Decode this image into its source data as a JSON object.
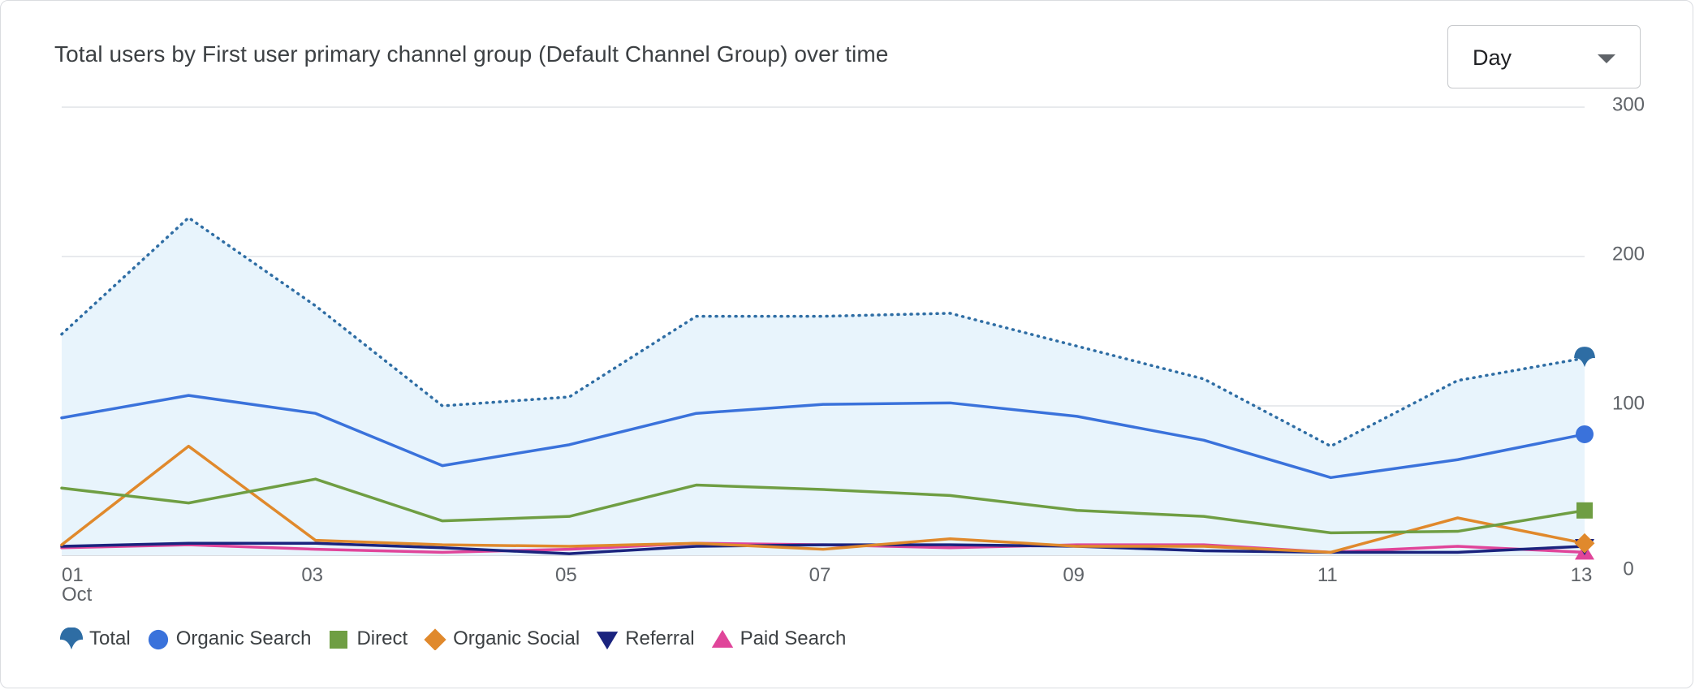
{
  "header": {
    "title": "Total users by First user primary channel group (Default Channel Group) over time",
    "granularity": "Day"
  },
  "chart_data": {
    "type": "line",
    "title": "Total users by First user primary channel group (Default Channel Group) over time",
    "x": [
      1,
      2,
      3,
      4,
      5,
      6,
      7,
      8,
      9,
      10,
      11,
      12,
      13
    ],
    "x_tick_labels": [
      "01",
      "03",
      "05",
      "07",
      "09",
      "11",
      "13"
    ],
    "x_tick_values": [
      1,
      3,
      5,
      7,
      9,
      11,
      13
    ],
    "x_sub_label": "Oct",
    "y_tick_labels": [
      "300",
      "200",
      "100",
      "0"
    ],
    "y_tick_values": [
      300,
      200,
      100,
      0
    ],
    "ylim": [
      0,
      300
    ],
    "y_axis_side": "right",
    "grid": true,
    "legend_position": "bottom-left",
    "series": [
      {
        "name": "Total",
        "key": "total",
        "color": "#2e6da4",
        "style": "dotted",
        "area": true,
        "area_color": "#e8f4fc",
        "marker": "drop",
        "values": [
          148,
          226,
          167,
          100,
          106,
          160,
          160,
          162,
          140,
          118,
          73,
          117,
          132
        ]
      },
      {
        "name": "Organic Search",
        "key": "organic_search",
        "color": "#3a72db",
        "style": "solid",
        "marker": "circle",
        "values": [
          92,
          107,
          95,
          60,
          74,
          95,
          101,
          102,
          93,
          77,
          52,
          64,
          81
        ]
      },
      {
        "name": "Direct",
        "key": "direct",
        "color": "#6f9e43",
        "style": "solid",
        "marker": "square",
        "values": [
          45,
          35,
          51,
          23,
          26,
          47,
          44,
          40,
          30,
          26,
          15,
          16,
          30
        ]
      },
      {
        "name": "Organic Social",
        "key": "organic_social",
        "color": "#e0892c",
        "style": "solid",
        "marker": "diamond",
        "values": [
          7,
          73,
          10,
          7,
          6,
          8,
          4,
          11,
          6,
          6,
          2,
          25,
          8
        ]
      },
      {
        "name": "Referral",
        "key": "referral",
        "color": "#1a237e",
        "style": "solid",
        "marker": "triangle-down",
        "values": [
          6,
          8,
          8,
          5,
          1,
          6,
          7,
          7,
          6,
          3,
          2,
          2,
          6
        ]
      },
      {
        "name": "Paid Search",
        "key": "paid_search",
        "color": "#e0459a",
        "style": "solid",
        "marker": "triangle-up",
        "values": [
          5,
          7,
          4,
          2,
          4,
          8,
          7,
          5,
          7,
          7,
          2,
          6,
          2
        ]
      }
    ]
  }
}
